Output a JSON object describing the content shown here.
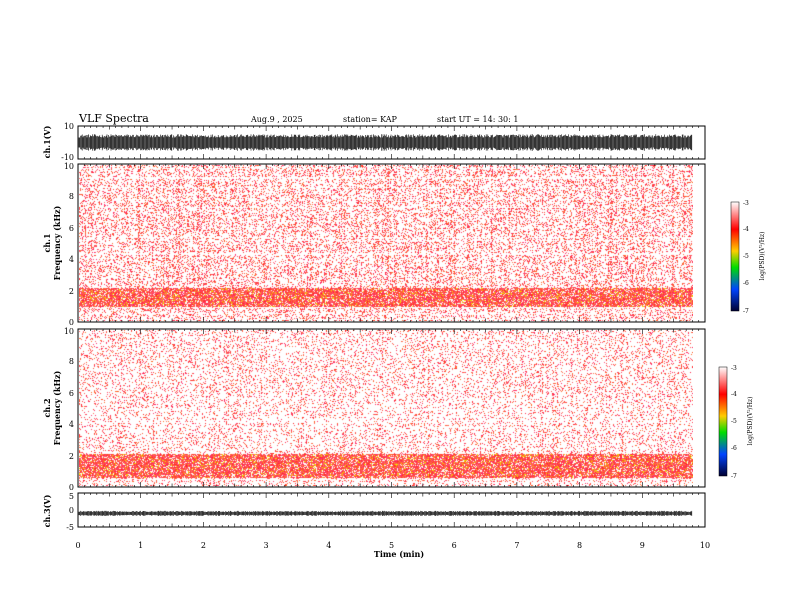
{
  "header": {
    "title": "VLF Spectra",
    "date": "Aug.9 , 2025",
    "station": "station= KAP",
    "start": "start UT = 14: 30: 1"
  },
  "chart_data": [
    {
      "type": "line",
      "name": "ch1-waveform",
      "ylabel": "ch.1(V)",
      "ylim": [
        -10,
        10
      ],
      "ytick_labels": [
        "10",
        "-10"
      ],
      "xlim": [
        0,
        10
      ],
      "data_extent_min": [
        0,
        9.8
      ],
      "signal": "dense noise saturating roughly -5 to 5 V"
    },
    {
      "type": "heatmap",
      "name": "ch1-spectrogram",
      "ylabel": "ch.1\nFrequency (kHz)",
      "ylim": [
        0,
        10
      ],
      "ytick_labels": [
        "0",
        "2",
        "4",
        "6",
        "8",
        "10"
      ],
      "xlim": [
        0,
        10
      ],
      "data_extent_min": [
        0,
        9.8
      ],
      "intense_band_khz": [
        0.9,
        2.1
      ],
      "colorbar": {
        "label": "log(PSD)(V²/Hz)",
        "range": [
          -7,
          -3
        ],
        "tick_labels": [
          "-3",
          "-4",
          "-5",
          "-6",
          "-7"
        ]
      }
    },
    {
      "type": "heatmap",
      "name": "ch2-spectrogram",
      "ylabel": "ch.2\nFrequency (kHz)",
      "ylim": [
        0,
        10
      ],
      "ytick_labels": [
        "0",
        "2",
        "4",
        "6",
        "8",
        "10"
      ],
      "xlim": [
        0,
        10
      ],
      "data_extent_min": [
        0,
        9.8
      ],
      "intense_band_khz": [
        0.5,
        2.0
      ],
      "colorbar": {
        "label": "log(PSD)(V²/Hz)",
        "range": [
          -7,
          -3
        ],
        "tick_labels": [
          "-3",
          "-4",
          "-5",
          "-6",
          "-7"
        ]
      }
    },
    {
      "type": "line",
      "name": "ch3-waveform",
      "ylabel": "ch.3(V)",
      "ylim": [
        -5,
        5
      ],
      "ytick_labels": [
        "5",
        "0",
        "-5"
      ],
      "xlim": [
        0,
        10
      ],
      "data_extent_min": [
        0,
        9.8
      ],
      "signal": "narrow band near -1 V"
    }
  ],
  "x_axis": {
    "label": "Time (min)",
    "tick_labels": [
      "0",
      "1",
      "2",
      "3",
      "4",
      "5",
      "6",
      "7",
      "8",
      "9",
      "10"
    ]
  }
}
